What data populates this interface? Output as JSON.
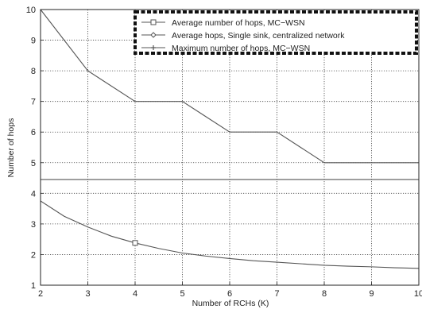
{
  "chart_data": {
    "type": "line",
    "title": "",
    "xlabel": "Number of RCHs (K)",
    "ylabel": "Number of hops",
    "xlim": [
      2,
      10
    ],
    "ylim": [
      1,
      10
    ],
    "x_ticks": [
      "2",
      "3",
      "4",
      "5",
      "6",
      "7",
      "8",
      "9",
      "10"
    ],
    "y_ticks": [
      "1",
      "2",
      "3",
      "4",
      "5",
      "6",
      "7",
      "8",
      "9",
      "10"
    ],
    "grid": true,
    "legend_position": "top-right",
    "colors": {
      "series": "#555555",
      "grid": "#444444",
      "axis": "#222222"
    },
    "series": [
      {
        "name": "Average number of hops, MC−WSN",
        "marker": "square",
        "x": [
          2,
          2.5,
          3,
          3.5,
          4,
          4.5,
          5,
          5.5,
          6,
          6.5,
          7,
          7.5,
          8,
          8.5,
          9,
          9.5,
          10
        ],
        "y": [
          3.75,
          3.25,
          2.9,
          2.6,
          2.38,
          2.2,
          2.05,
          1.95,
          1.87,
          1.8,
          1.75,
          1.7,
          1.65,
          1.62,
          1.6,
          1.57,
          1.55
        ]
      },
      {
        "name": "Average hops, Single sink, centralized network",
        "marker": "diamond",
        "x": [
          2,
          10
        ],
        "y": [
          4.45,
          4.45
        ]
      },
      {
        "name": "Maximum number of hops, MC−WSN",
        "marker": "plus",
        "x": [
          2,
          3,
          4,
          5,
          6,
          7,
          8,
          9,
          10
        ],
        "y": [
          10,
          8,
          7,
          7,
          6,
          6,
          5,
          5,
          5
        ]
      }
    ]
  }
}
